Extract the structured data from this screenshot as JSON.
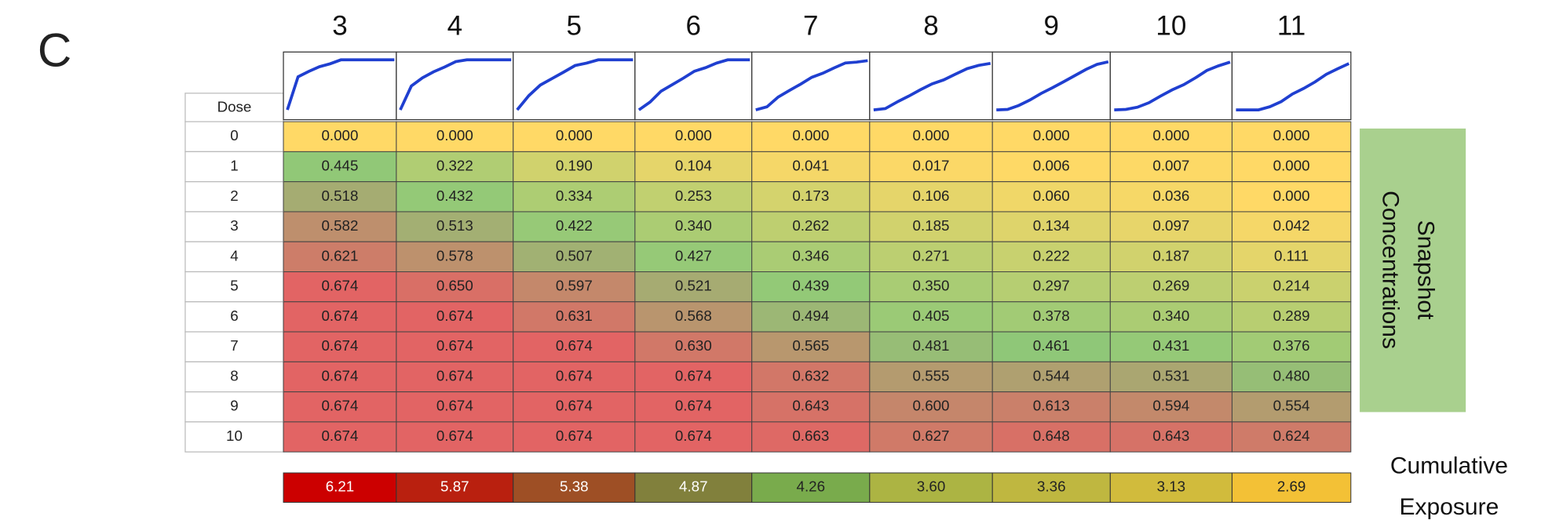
{
  "panel_label": "C",
  "row_header": "Dose",
  "columns": [
    "3",
    "4",
    "5",
    "6",
    "7",
    "8",
    "9",
    "10",
    "11"
  ],
  "rows": [
    {
      "dose": "0",
      "values": [
        "0.000",
        "0.000",
        "0.000",
        "0.000",
        "0.000",
        "0.000",
        "0.000",
        "0.000",
        "0.000"
      ]
    },
    {
      "dose": "1",
      "values": [
        "0.445",
        "0.322",
        "0.190",
        "0.104",
        "0.041",
        "0.017",
        "0.006",
        "0.007",
        "0.000"
      ]
    },
    {
      "dose": "2",
      "values": [
        "0.518",
        "0.432",
        "0.334",
        "0.253",
        "0.173",
        "0.106",
        "0.060",
        "0.036",
        "0.000"
      ]
    },
    {
      "dose": "3",
      "values": [
        "0.582",
        "0.513",
        "0.422",
        "0.340",
        "0.262",
        "0.185",
        "0.134",
        "0.097",
        "0.042"
      ]
    },
    {
      "dose": "4",
      "values": [
        "0.621",
        "0.578",
        "0.507",
        "0.427",
        "0.346",
        "0.271",
        "0.222",
        "0.187",
        "0.111"
      ]
    },
    {
      "dose": "5",
      "values": [
        "0.674",
        "0.650",
        "0.597",
        "0.521",
        "0.439",
        "0.350",
        "0.297",
        "0.269",
        "0.214"
      ]
    },
    {
      "dose": "6",
      "values": [
        "0.674",
        "0.674",
        "0.631",
        "0.568",
        "0.494",
        "0.405",
        "0.378",
        "0.340",
        "0.289"
      ]
    },
    {
      "dose": "7",
      "values": [
        "0.674",
        "0.674",
        "0.674",
        "0.630",
        "0.565",
        "0.481",
        "0.461",
        "0.431",
        "0.376"
      ]
    },
    {
      "dose": "8",
      "values": [
        "0.674",
        "0.674",
        "0.674",
        "0.674",
        "0.632",
        "0.555",
        "0.544",
        "0.531",
        "0.480"
      ]
    },
    {
      "dose": "9",
      "values": [
        "0.674",
        "0.674",
        "0.674",
        "0.674",
        "0.643",
        "0.600",
        "0.613",
        "0.594",
        "0.554"
      ]
    },
    {
      "dose": "10",
      "values": [
        "0.674",
        "0.674",
        "0.674",
        "0.674",
        "0.663",
        "0.627",
        "0.648",
        "0.643",
        "0.624"
      ]
    }
  ],
  "cumulative": [
    "6.21",
    "5.87",
    "5.38",
    "4.87",
    "4.26",
    "3.60",
    "3.36",
    "3.13",
    "2.69"
  ],
  "side_label": [
    "Snapshot",
    "Concentrations"
  ],
  "cumulative_label": [
    "Cumulative",
    "Exposure"
  ]
}
